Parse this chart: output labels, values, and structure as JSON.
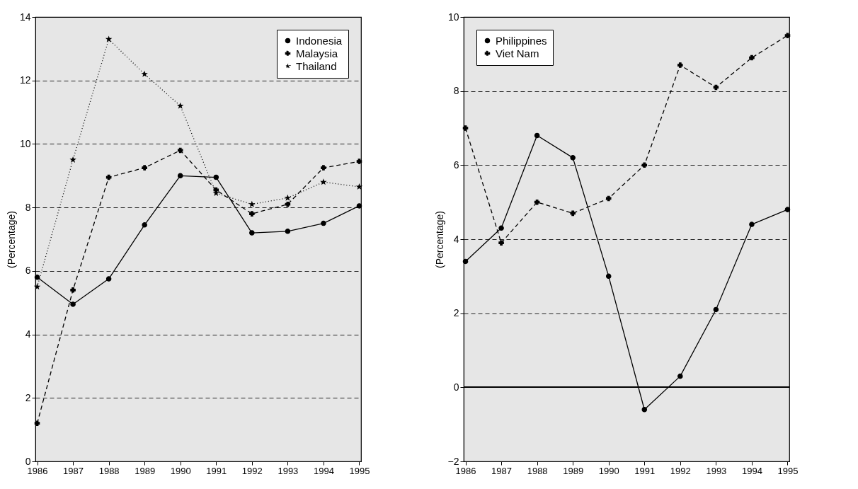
{
  "chart_data": [
    {
      "type": "line",
      "ylabel": "(Percentage)",
      "categories": [
        "1986",
        "1987",
        "1988",
        "1989",
        "1990",
        "1991",
        "1992",
        "1993",
        "1994",
        "1995"
      ],
      "ylim": [
        0,
        14
      ],
      "yticks": [
        0,
        2,
        4,
        6,
        8,
        10,
        12,
        14
      ],
      "grid": "y",
      "legend": "top right",
      "series": [
        {
          "name": "Indonesia",
          "color": "#000000",
          "marker": "circle",
          "line_style": "solid",
          "values": [
            5.8,
            4.95,
            5.75,
            7.45,
            9.0,
            8.95,
            7.2,
            7.25,
            7.5,
            8.05
          ]
        },
        {
          "name": "Malaysia",
          "color": "#000000",
          "marker": "cross",
          "line_style": "dashed",
          "values": [
            1.2,
            5.4,
            8.95,
            9.25,
            9.8,
            8.55,
            7.8,
            8.1,
            9.25,
            9.45
          ]
        },
        {
          "name": "Thailand",
          "color": "#000000",
          "marker": "star",
          "line_style": "dotted",
          "values": [
            5.5,
            9.5,
            13.3,
            12.2,
            11.2,
            8.45,
            8.1,
            8.3,
            8.8,
            8.65
          ]
        }
      ]
    },
    {
      "type": "line",
      "ylabel": "(Percentage)",
      "categories": [
        "1986",
        "1987",
        "1988",
        "1989",
        "1990",
        "1991",
        "1992",
        "1993",
        "1994",
        "1995"
      ],
      "ylim": [
        -2,
        10
      ],
      "yticks": [
        -2,
        0,
        2,
        4,
        6,
        8,
        10
      ],
      "grid": "y",
      "legend": "top left",
      "ref_lines": [
        {
          "axis": "y",
          "value": 0,
          "color": "#000000",
          "line_style": "solid"
        }
      ],
      "series": [
        {
          "name": "Philippines",
          "color": "#000000",
          "marker": "circle",
          "line_style": "solid",
          "values": [
            3.4,
            4.3,
            6.8,
            6.2,
            3.0,
            -0.6,
            0.3,
            2.1,
            4.4,
            4.8
          ]
        },
        {
          "name": "Viet Nam",
          "color": "#000000",
          "marker": "cross",
          "line_style": "dashed",
          "values": [
            7.0,
            3.9,
            5.0,
            4.7,
            5.1,
            6.0,
            8.7,
            8.1,
            8.9,
            9.5
          ]
        }
      ]
    }
  ]
}
